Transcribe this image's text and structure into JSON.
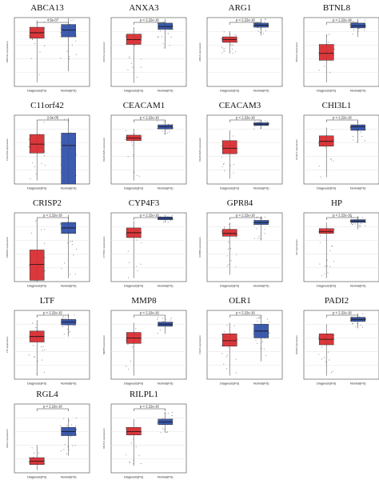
{
  "chart_data": [
    {
      "type": "box",
      "title": "ABCA13",
      "pvalue": "4.5e-07",
      "categories": [
        "Diagnosis(FS)",
        "Normal(FS)"
      ],
      "ylabel": "ABCA13 expression",
      "series": [
        {
          "name": "Diagnosis(FS)",
          "color": "#d8292d",
          "stats": {
            "min": 0.06,
            "q1": 0.7,
            "median": 0.78,
            "q3": 0.86,
            "max": 0.96
          }
        },
        {
          "name": "Normal(FS)",
          "color": "#2e4fa8",
          "stats": {
            "min": 0.22,
            "q1": 0.72,
            "median": 0.82,
            "q3": 0.9,
            "max": 0.99
          }
        }
      ]
    },
    {
      "type": "box",
      "title": "ANXA3",
      "pvalue": "p < 2.22e-16",
      "categories": [
        "Diagnosis(FS)",
        "Normal(FS)"
      ],
      "ylabel": "ANXA3 expression",
      "series": [
        {
          "name": "Diagnosis(FS)",
          "color": "#d8292d",
          "stats": {
            "min": 0.05,
            "q1": 0.61,
            "median": 0.68,
            "q3": 0.76,
            "max": 0.86
          }
        },
        {
          "name": "Normal(FS)",
          "color": "#2e4fa8",
          "stats": {
            "min": 0.55,
            "q1": 0.83,
            "median": 0.87,
            "q3": 0.92,
            "max": 0.98
          }
        }
      ]
    },
    {
      "type": "box",
      "title": "ARG1",
      "pvalue": "p < 2.22e-16",
      "categories": [
        "Diagnosis(FS)",
        "Normal(FS)"
      ],
      "ylabel": "ARG1 expression",
      "series": [
        {
          "name": "Diagnosis(FS)",
          "color": "#d8292d",
          "stats": {
            "min": 0.48,
            "q1": 0.64,
            "median": 0.68,
            "q3": 0.72,
            "max": 0.8
          }
        },
        {
          "name": "Normal(FS)",
          "color": "#2e4fa8",
          "stats": {
            "min": 0.74,
            "q1": 0.86,
            "median": 0.89,
            "q3": 0.92,
            "max": 0.98
          }
        }
      ]
    },
    {
      "type": "box",
      "title": "BTNL8",
      "pvalue": "p < 2.22e-16",
      "categories": [
        "Diagnosis(FS)",
        "Normal(FS)"
      ],
      "ylabel": "BTNL8 expression",
      "series": [
        {
          "name": "Diagnosis(FS)",
          "color": "#d8292d",
          "stats": {
            "min": 0.06,
            "q1": 0.38,
            "median": 0.48,
            "q3": 0.61,
            "max": 0.76
          }
        },
        {
          "name": "Normal(FS)",
          "color": "#2e4fa8",
          "stats": {
            "min": 0.72,
            "q1": 0.85,
            "median": 0.88,
            "q3": 0.92,
            "max": 0.98
          }
        }
      ]
    },
    {
      "type": "box",
      "title": "C11orf42",
      "pvalue": "2.6e-05",
      "categories": [
        "Diagnosis(FS)",
        "Normal(FS)"
      ],
      "ylabel": "C11orf42 expression",
      "series": [
        {
          "name": "Diagnosis(FS)",
          "color": "#d8292d",
          "stats": {
            "min": 0.05,
            "q1": 0.45,
            "median": 0.58,
            "q3": 0.72,
            "max": 0.9
          }
        },
        {
          "name": "Normal(FS)",
          "color": "#2e4fa8",
          "stats": {
            "min": 0.0,
            "q1": 0.0,
            "median": 0.56,
            "q3": 0.74,
            "max": 0.96
          }
        }
      ]
    },
    {
      "type": "box",
      "title": "CEACAM1",
      "pvalue": "p < 2.22e-16",
      "categories": [
        "Diagnosis(FS)",
        "Normal(FS)"
      ],
      "ylabel": "CEACAM1 expression",
      "series": [
        {
          "name": "Diagnosis(FS)",
          "color": "#d8292d",
          "stats": {
            "min": 0.05,
            "q1": 0.63,
            "median": 0.67,
            "q3": 0.71,
            "max": 0.8
          }
        },
        {
          "name": "Normal(FS)",
          "color": "#2e4fa8",
          "stats": {
            "min": 0.72,
            "q1": 0.8,
            "median": 0.83,
            "q3": 0.86,
            "max": 0.92
          }
        }
      ]
    },
    {
      "type": "box",
      "title": "CEACAM3",
      "pvalue": "p < 2.22e-16",
      "categories": [
        "Diagnosis(FS)",
        "Normal(FS)"
      ],
      "ylabel": "CEACAM3 expression",
      "series": [
        {
          "name": "Diagnosis(FS)",
          "color": "#d8292d",
          "stats": {
            "min": 0.08,
            "q1": 0.44,
            "median": 0.52,
            "q3": 0.63,
            "max": 0.78
          }
        },
        {
          "name": "Normal(FS)",
          "color": "#2e4fa8",
          "stats": {
            "min": 0.8,
            "q1": 0.85,
            "median": 0.87,
            "q3": 0.89,
            "max": 0.93
          }
        }
      ]
    },
    {
      "type": "box",
      "title": "CHI3L1",
      "pvalue": "p < 2.22e-16",
      "categories": [
        "Diagnosis(FS)",
        "Normal(FS)"
      ],
      "ylabel": "CHI3L1 expression",
      "series": [
        {
          "name": "Diagnosis(FS)",
          "color": "#d8292d",
          "stats": {
            "min": 0.1,
            "q1": 0.55,
            "median": 0.62,
            "q3": 0.7,
            "max": 0.82
          }
        },
        {
          "name": "Normal(FS)",
          "color": "#2e4fa8",
          "stats": {
            "min": 0.6,
            "q1": 0.78,
            "median": 0.83,
            "q3": 0.86,
            "max": 0.92
          }
        }
      ]
    },
    {
      "type": "box",
      "title": "CRISP2",
      "pvalue": "p < 2.22e-16",
      "categories": [
        "Diagnosis(FS)",
        "Normal(FS)"
      ],
      "ylabel": "CRISP2 expression",
      "series": [
        {
          "name": "Diagnosis(FS)",
          "color": "#d8292d",
          "stats": {
            "min": 0.0,
            "q1": 0.02,
            "median": 0.25,
            "q3": 0.46,
            "max": 0.9
          }
        },
        {
          "name": "Normal(FS)",
          "color": "#2e4fa8",
          "stats": {
            "min": 0.05,
            "q1": 0.7,
            "median": 0.78,
            "q3": 0.86,
            "max": 0.97
          }
        }
      ]
    },
    {
      "type": "box",
      "title": "CYP4F3",
      "pvalue": "p < 2.22e-16",
      "categories": [
        "Diagnosis(FS)",
        "Normal(FS)"
      ],
      "ylabel": "CYP4F3 expression",
      "series": [
        {
          "name": "Diagnosis(FS)",
          "color": "#d8292d",
          "stats": {
            "min": 0.05,
            "q1": 0.64,
            "median": 0.71,
            "q3": 0.78,
            "max": 0.88
          }
        },
        {
          "name": "Normal(FS)",
          "color": "#2e4fa8",
          "stats": {
            "min": 0.86,
            "q1": 0.9,
            "median": 0.92,
            "q3": 0.94,
            "max": 0.97
          }
        }
      ]
    },
    {
      "type": "box",
      "title": "GPR84",
      "pvalue": "p < 2.22e-16",
      "categories": [
        "Diagnosis(FS)",
        "Normal(FS)"
      ],
      "ylabel": "GPR84 expression",
      "series": [
        {
          "name": "Diagnosis(FS)",
          "color": "#d8292d",
          "stats": {
            "min": 0.1,
            "q1": 0.66,
            "median": 0.7,
            "q3": 0.76,
            "max": 0.86
          }
        },
        {
          "name": "Normal(FS)",
          "color": "#2e4fa8",
          "stats": {
            "min": 0.6,
            "q1": 0.83,
            "median": 0.86,
            "q3": 0.89,
            "max": 0.95
          }
        }
      ]
    },
    {
      "type": "box",
      "title": "HP",
      "pvalue": "p < 2.22e-16",
      "categories": [
        "Diagnosis(FS)",
        "Normal(FS)"
      ],
      "ylabel": "HP expression",
      "series": [
        {
          "name": "Diagnosis(FS)",
          "color": "#d8292d",
          "stats": {
            "min": 0.05,
            "q1": 0.7,
            "median": 0.73,
            "q3": 0.77,
            "max": 0.86
          }
        },
        {
          "name": "Normal(FS)",
          "color": "#2e4fa8",
          "stats": {
            "min": 0.76,
            "q1": 0.86,
            "median": 0.88,
            "q3": 0.9,
            "max": 0.95
          }
        }
      ]
    },
    {
      "type": "box",
      "title": "LTF",
      "pvalue": "p < 2.22e-16",
      "categories": [
        "Diagnosis(FS)",
        "Normal(FS)"
      ],
      "ylabel": "LTF expression",
      "series": [
        {
          "name": "Diagnosis(FS)",
          "color": "#d8292d",
          "stats": {
            "min": 0.05,
            "q1": 0.54,
            "median": 0.62,
            "q3": 0.7,
            "max": 0.86
          }
        },
        {
          "name": "Normal(FS)",
          "color": "#2e4fa8",
          "stats": {
            "min": 0.62,
            "q1": 0.79,
            "median": 0.83,
            "q3": 0.87,
            "max": 0.95
          }
        }
      ]
    },
    {
      "type": "box",
      "title": "MMP8",
      "pvalue": "p < 2.22e-16",
      "categories": [
        "Diagnosis(FS)",
        "Normal(FS)"
      ],
      "ylabel": "MMP8 expression",
      "series": [
        {
          "name": "Diagnosis(FS)",
          "color": "#d8292d",
          "stats": {
            "min": 0.05,
            "q1": 0.52,
            "median": 0.6,
            "q3": 0.68,
            "max": 0.82
          }
        },
        {
          "name": "Normal(FS)",
          "color": "#2e4fa8",
          "stats": {
            "min": 0.66,
            "q1": 0.77,
            "median": 0.8,
            "q3": 0.83,
            "max": 0.9
          }
        }
      ]
    },
    {
      "type": "box",
      "title": "OLR1",
      "pvalue": "p < 2.22e-16",
      "categories": [
        "Diagnosis(FS)",
        "Normal(FS)"
      ],
      "ylabel": "OLR1 expression",
      "series": [
        {
          "name": "Diagnosis(FS)",
          "color": "#d8292d",
          "stats": {
            "min": 0.05,
            "q1": 0.48,
            "median": 0.56,
            "q3": 0.66,
            "max": 0.82
          }
        },
        {
          "name": "Normal(FS)",
          "color": "#2e4fa8",
          "stats": {
            "min": 0.26,
            "q1": 0.6,
            "median": 0.7,
            "q3": 0.8,
            "max": 0.92
          }
        }
      ]
    },
    {
      "type": "box",
      "title": "PADI2",
      "pvalue": "p < 2.22e-16",
      "categories": [
        "Diagnosis(FS)",
        "Normal(FS)"
      ],
      "ylabel": "PADI2 expression",
      "series": [
        {
          "name": "Diagnosis(FS)",
          "color": "#d8292d",
          "stats": {
            "min": 0.05,
            "q1": 0.5,
            "median": 0.58,
            "q3": 0.66,
            "max": 0.8
          }
        },
        {
          "name": "Normal(FS)",
          "color": "#2e4fa8",
          "stats": {
            "min": 0.74,
            "q1": 0.84,
            "median": 0.87,
            "q3": 0.9,
            "max": 0.96
          }
        }
      ]
    },
    {
      "type": "box",
      "title": "RGL4",
      "pvalue": "p < 2.22e-16",
      "categories": [
        "Diagnosis(FS)",
        "Normal(FS)"
      ],
      "ylabel": "RGL4 expression",
      "series": [
        {
          "name": "Diagnosis(FS)",
          "color": "#d8292d",
          "stats": {
            "min": 0.04,
            "q1": 0.12,
            "median": 0.17,
            "q3": 0.22,
            "max": 0.4
          }
        },
        {
          "name": "Normal(FS)",
          "color": "#2e4fa8",
          "stats": {
            "min": 0.25,
            "q1": 0.54,
            "median": 0.6,
            "q3": 0.66,
            "max": 0.8
          }
        }
      ]
    },
    {
      "type": "box",
      "title": "RILPL1",
      "pvalue": "p < 2.22e-16",
      "categories": [
        "Diagnosis(FS)",
        "Normal(FS)"
      ],
      "ylabel": "RILPL1 expression",
      "series": [
        {
          "name": "Diagnosis(FS)",
          "color": "#d8292d",
          "stats": {
            "min": 0.1,
            "q1": 0.55,
            "median": 0.6,
            "q3": 0.66,
            "max": 0.78
          }
        },
        {
          "name": "Normal(FS)",
          "color": "#2e4fa8",
          "stats": {
            "min": 0.58,
            "q1": 0.7,
            "median": 0.74,
            "q3": 0.78,
            "max": 0.88
          }
        }
      ]
    }
  ]
}
